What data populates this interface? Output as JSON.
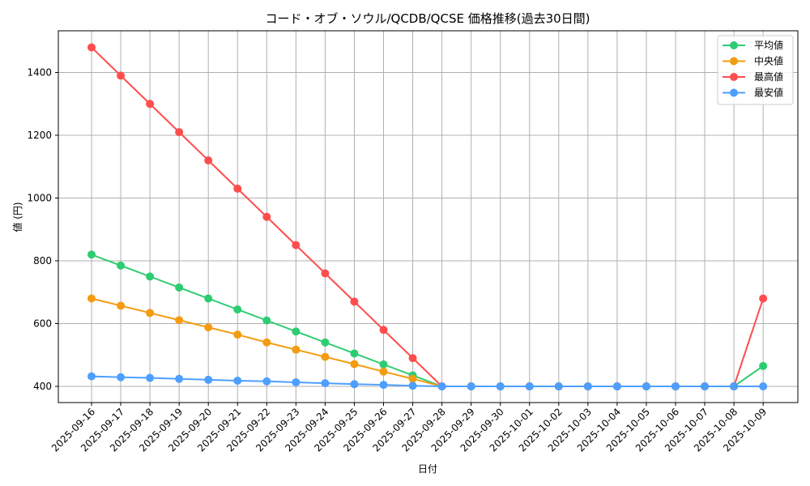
{
  "chart_data": {
    "type": "line",
    "title": "コード・オブ・ソウル/QCDB/QCSE 価格推移(過去30日間)",
    "xlabel": "日付",
    "ylabel": "値 (円)",
    "ylim": [
      345,
      1535
    ],
    "yticks": [
      400,
      600,
      800,
      1000,
      1200,
      1400
    ],
    "grid": true,
    "legend_position": "upper right",
    "x": [
      "2025-09-16",
      "2025-09-17",
      "2025-09-18",
      "2025-09-19",
      "2025-09-20",
      "2025-09-21",
      "2025-09-22",
      "2025-09-23",
      "2025-09-24",
      "2025-09-25",
      "2025-09-26",
      "2025-09-27",
      "2025-09-28",
      "2025-09-29",
      "2025-09-30",
      "2025-10-01",
      "2025-10-02",
      "2025-10-03",
      "2025-10-04",
      "2025-10-05",
      "2025-10-06",
      "2025-10-07",
      "2025-10-08",
      "2025-10-09"
    ],
    "series": [
      {
        "name": "平均値",
        "color": "#2ecc71",
        "values": [
          820,
          785,
          750,
          715,
          680,
          645,
          610,
          575,
          540,
          505,
          470,
          435,
          400,
          400,
          400,
          400,
          400,
          400,
          400,
          400,
          400,
          400,
          400,
          465
        ]
      },
      {
        "name": "中央値",
        "color": "#f39c12",
        "values": [
          680,
          657,
          634,
          611,
          588,
          565,
          540,
          517,
          494,
          471,
          447,
          424,
          400,
          400,
          400,
          400,
          400,
          400,
          400,
          400,
          400,
          400,
          400,
          400
        ]
      },
      {
        "name": "最高値",
        "color": "#ff4d4d",
        "values": [
          1480,
          1390,
          1300,
          1210,
          1120,
          1030,
          940,
          850,
          760,
          670,
          580,
          490,
          400,
          400,
          400,
          400,
          400,
          400,
          400,
          400,
          400,
          400,
          400,
          680
        ]
      },
      {
        "name": "最安値",
        "color": "#4d9fff",
        "values": [
          432,
          429,
          427,
          424,
          421,
          418,
          416,
          413,
          410,
          407,
          405,
          402,
          400,
          400,
          400,
          400,
          400,
          400,
          400,
          400,
          400,
          400,
          400,
          400
        ]
      }
    ]
  }
}
